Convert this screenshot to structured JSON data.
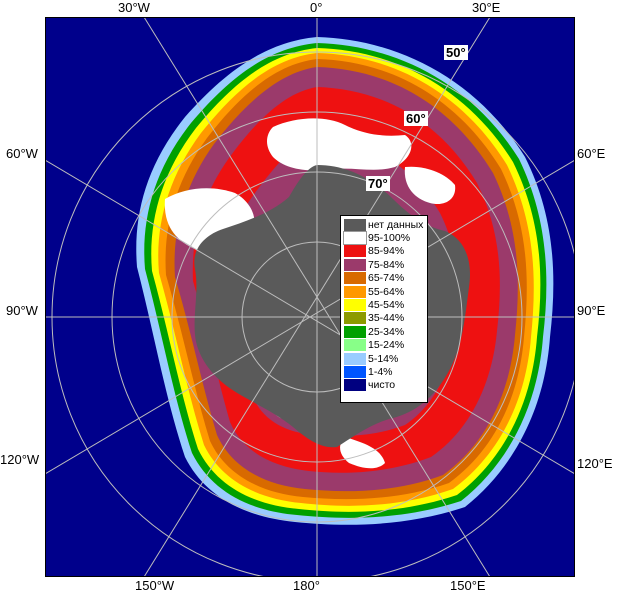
{
  "colors": {
    "ocean": "#00008B",
    "no_data": "#5a5a5a",
    "c95_100": "#ffffff",
    "c85_94": "#ee1111",
    "c75_84": "#9b3a6b",
    "c65_74": "#d86a00",
    "c55_64": "#ff9900",
    "c45_54": "#ffff00",
    "c35_44": "#8c9a00",
    "c25_34": "#00a000",
    "c15_24": "#88ff88",
    "c5_14": "#99ccff",
    "c1_4": "#0055ff",
    "clear": "#000080",
    "grid": "#c8c8c8",
    "lat_grid": "#bdbdbd"
  },
  "longitude_labels": {
    "top": [
      "30°W",
      "0°",
      "30°E"
    ],
    "bottom": [
      "150°W",
      "180°",
      "150°E"
    ],
    "left": [
      "60°W",
      "90°W",
      "120°W"
    ],
    "right": [
      "60°E",
      "90°E",
      "120°E"
    ]
  },
  "latitude_labels": [
    "50°",
    "60°",
    "70°"
  ],
  "legend": {
    "items": [
      {
        "label": "нет данных",
        "color": "#5a5a5a"
      },
      {
        "label": "95-100%",
        "color": "#ffffff"
      },
      {
        "label": "85-94%",
        "color": "#ee1111"
      },
      {
        "label": "75-84%",
        "color": "#9b3a6b"
      },
      {
        "label": "65-74%",
        "color": "#d86a00"
      },
      {
        "label": "55-64%",
        "color": "#ff9900"
      },
      {
        "label": "45-54%",
        "color": "#ffff00"
      },
      {
        "label": "35-44%",
        "color": "#8c9a00"
      },
      {
        "label": "25-34%",
        "color": "#00a000"
      },
      {
        "label": "15-24%",
        "color": "#88ff88"
      },
      {
        "label": "5-14%",
        "color": "#99ccff"
      },
      {
        "label": "1-4%",
        "color": "#0055ff"
      },
      {
        "label": "чисто",
        "color": "#000080"
      }
    ]
  }
}
